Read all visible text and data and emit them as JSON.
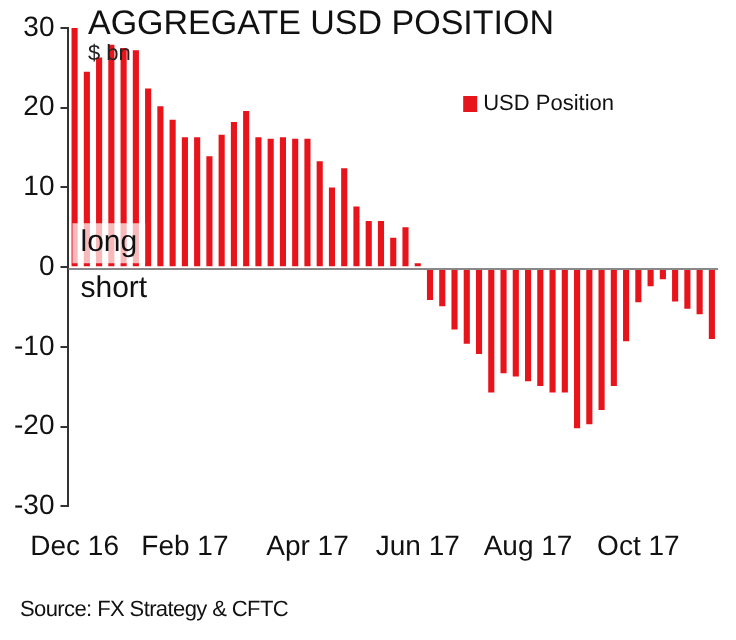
{
  "chart_data": {
    "type": "bar",
    "title": "AGGREGATE USD POSITION",
    "ylabel": "$ bn",
    "categories": [
      "Dec 16",
      null,
      null,
      null,
      null,
      null,
      null,
      null,
      null,
      "Feb 17",
      null,
      null,
      null,
      null,
      null,
      null,
      null,
      null,
      null,
      "Apr 17",
      null,
      null,
      null,
      null,
      null,
      null,
      null,
      null,
      "Jun 17",
      null,
      null,
      null,
      null,
      null,
      null,
      null,
      null,
      "Aug 17",
      null,
      null,
      null,
      null,
      null,
      null,
      null,
      null,
      "Oct 17",
      null,
      null,
      null,
      null,
      null,
      null
    ],
    "series": [
      {
        "name": "USD Position",
        "color": "#e8141b",
        "values": [
          30,
          24.5,
          26.3,
          27.9,
          27.5,
          27.2,
          22.4,
          20.2,
          18.5,
          16.3,
          16.3,
          13.9,
          16.6,
          18.2,
          19.6,
          16.3,
          16.1,
          16.3,
          16.1,
          16.1,
          13.3,
          10,
          12.4,
          7.6,
          5.8,
          5.8,
          3.7,
          5,
          0.5,
          -4.1,
          -4.9,
          -7.8,
          -9.6,
          -10.9,
          -15.7,
          -13.3,
          -13.7,
          -14.3,
          -14.9,
          -15.7,
          -15.7,
          -20.2,
          -19.7,
          -17.9,
          -14.9,
          -9.3,
          -4.4,
          -2.4,
          -1.5,
          -4.3,
          -5.2,
          -5.9,
          -9
        ]
      }
    ],
    "ylim": [
      -30,
      30
    ],
    "yticks": [
      -30,
      -20,
      -10,
      0,
      10,
      20,
      30
    ],
    "grid": false,
    "legend": "top right",
    "ref_lines": [
      {
        "axis": "y",
        "value": 0,
        "color": "#888888"
      }
    ],
    "annotations": [
      "long",
      "short",
      "Source: FX Strategy & CFTC"
    ]
  }
}
